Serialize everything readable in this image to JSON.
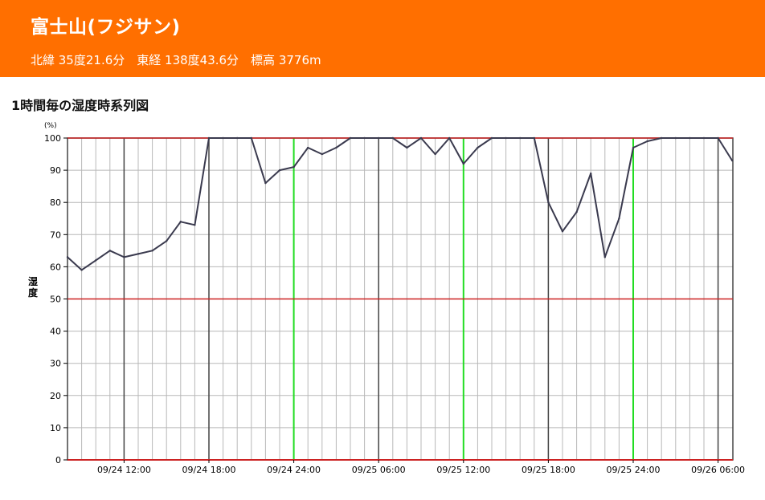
{
  "location": {
    "name": "富士山(フジサン)",
    "coords": "北緯 35度21.6分　東経 138度43.6分　標高 3776m"
  },
  "section_title": "1時間毎の湿度時系列図",
  "colors": {
    "banner": "#ff6f00",
    "series": "#3a3a4e",
    "red_reference": "#cc2222",
    "green_marker": "#22dd22",
    "major_grid": "#444444",
    "minor_grid": "#b8b8b8"
  },
  "chart_data": {
    "type": "line",
    "title": "1時間毎の湿度時系列図",
    "ylabel": "湿度",
    "yunit": "(%)",
    "ylim": [
      0,
      100
    ],
    "yticks": [
      0,
      10,
      20,
      30,
      40,
      50,
      60,
      70,
      80,
      90,
      100
    ],
    "xlim": [
      "09/24 08:00",
      "09/26 07:00"
    ],
    "xtick_labels": [
      "09/24 12:00",
      "09/24 18:00",
      "09/24 24:00",
      "09/25 06:00",
      "09/25 12:00",
      "09/25 18:00",
      "09/25 24:00",
      "09/26 06:00"
    ],
    "reference_lines_y": [
      50,
      100
    ],
    "grid": true,
    "series": [
      {
        "x": [
          "09/24 08:00",
          "09/24 09:00",
          "09/24 10:00",
          "09/24 11:00",
          "09/24 12:00",
          "09/24 13:00",
          "09/24 14:00",
          "09/24 15:00",
          "09/24 16:00",
          "09/24 17:00",
          "09/24 18:00",
          "09/24 19:00",
          "09/24 20:00",
          "09/24 21:00",
          "09/24 22:00",
          "09/24 23:00",
          "09/24 24:00",
          "09/25 01:00",
          "09/25 02:00",
          "09/25 03:00",
          "09/25 04:00",
          "09/25 05:00",
          "09/25 06:00",
          "09/25 07:00",
          "09/25 08:00",
          "09/25 09:00",
          "09/25 10:00",
          "09/25 11:00",
          "09/25 12:00",
          "09/25 13:00",
          "09/25 14:00",
          "09/25 15:00",
          "09/25 16:00",
          "09/25 17:00",
          "09/25 18:00",
          "09/25 19:00",
          "09/25 20:00",
          "09/25 21:00",
          "09/25 22:00",
          "09/25 23:00",
          "09/25 24:00",
          "09/26 01:00",
          "09/26 02:00",
          "09/26 03:00",
          "09/26 04:00",
          "09/26 05:00",
          "09/26 06:00",
          "09/26 07:00"
        ],
        "values": [
          63,
          59,
          62,
          65,
          63,
          64,
          65,
          68,
          74,
          73,
          100,
          100,
          100,
          100,
          86,
          90,
          91,
          97,
          95,
          97,
          100,
          100,
          100,
          100,
          97,
          100,
          95,
          100,
          92,
          97,
          100,
          100,
          100,
          100,
          80,
          71,
          77,
          89,
          63,
          75,
          97,
          99,
          100,
          100,
          100,
          100,
          100,
          93
        ]
      }
    ]
  }
}
